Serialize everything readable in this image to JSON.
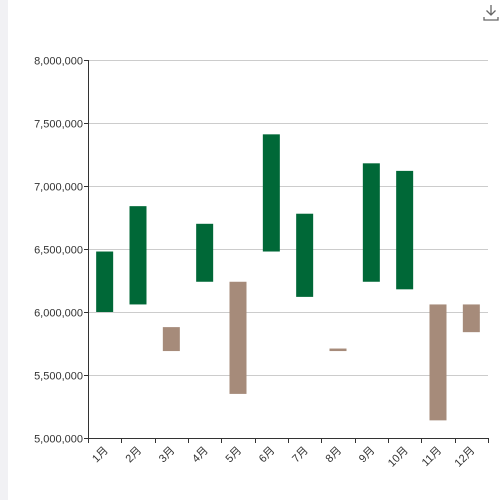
{
  "toolbar": {
    "download_icon": "download-icon"
  },
  "colors": {
    "increase": "#006837",
    "decrease": "#a68b7a",
    "grid": "#cccccc",
    "axis": "#333333",
    "text": "#333333"
  },
  "chart_data": {
    "type": "bar",
    "subtype": "floating-range",
    "categories": [
      "1月",
      "2月",
      "3月",
      "4月",
      "5月",
      "6月",
      "7月",
      "8月",
      "9月",
      "10月",
      "11月",
      "12月"
    ],
    "series": [
      {
        "low": [
          6000000,
          6060000,
          5690000,
          6240000,
          5350000,
          6480000,
          6120000,
          5690000,
          6240000,
          6180000,
          5140000,
          5840000
        ],
        "high": [
          6480000,
          6840000,
          5880000,
          6700000,
          6240000,
          7410000,
          6780000,
          5710000,
          7180000,
          7120000,
          6060000,
          6060000
        ],
        "direction": [
          "up",
          "up",
          "down",
          "up",
          "down",
          "up",
          "up",
          "down",
          "up",
          "up",
          "down",
          "down"
        ]
      }
    ],
    "ylim": [
      5000000,
      8000000
    ],
    "yticks": [
      "5,000,000",
      "5,500,000",
      "6,000,000",
      "6,500,000",
      "7,000,000",
      "7,500,000",
      "8,000,000"
    ],
    "ytick_values": [
      5000000,
      5500000,
      6000000,
      6500000,
      7000000,
      7500000,
      8000000
    ],
    "grid": true,
    "title": "",
    "xlabel": "",
    "ylabel": ""
  }
}
